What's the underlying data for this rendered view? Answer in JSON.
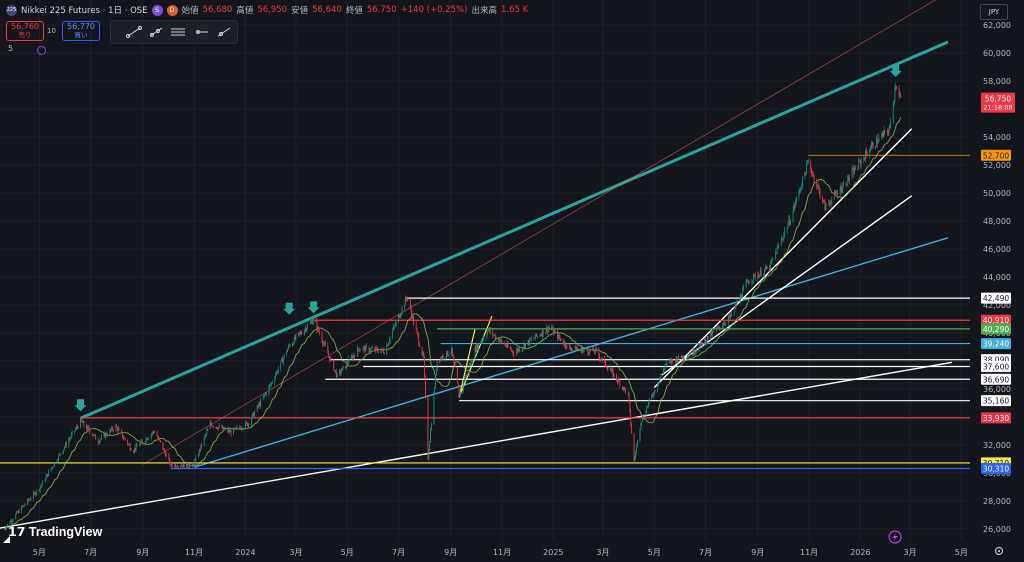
{
  "header": {
    "symbol_icon": "225",
    "title": "Nikkei 225 Futures · 1日 · OSE",
    "ohlc": [
      {
        "label": "始値",
        "value": "56,680"
      },
      {
        "label": "高値",
        "value": "56,950"
      },
      {
        "label": "安値",
        "value": "56,640"
      },
      {
        "label": "終値",
        "value": "56,750"
      }
    ],
    "change": "+140 (+0.25%)",
    "volume_label": "出来高",
    "volume": "1.65 K",
    "badge_s": "S",
    "badge_d": "D",
    "sell_price": "56,760",
    "sell_label": "売り",
    "buy_price": "56,770",
    "buy_label": "買い",
    "spread": "10",
    "indicator_count": "5",
    "currency": "JPY"
  },
  "icons": [
    "trend-line-icon",
    "ray-icon",
    "parallel-channel-icon",
    "horizontal-ray-icon",
    "extended-line-icon",
    "gear-icon",
    "lightning-icon"
  ],
  "branding": "TradingView",
  "colors": {
    "up": "#089981",
    "down": "#f23645",
    "background": "#14161d",
    "teal_line": "#26a69a",
    "blue_line": "#3fb0d8"
  },
  "chart_data": {
    "type": "candlestick",
    "y_ticks": [
      "26,000",
      "28,000",
      "30,000",
      "32,000",
      "34,000",
      "36,000",
      "38,000",
      "40,000",
      "42,000",
      "44,000",
      "46,000",
      "48,000",
      "50,000",
      "52,000",
      "54,000",
      "56,000",
      "58,000",
      "60,000",
      "62,000"
    ],
    "ylim": [
      25200,
      63800
    ],
    "x_ticks": [
      {
        "label": "5月",
        "date": "2023-05-01"
      },
      {
        "label": "7月",
        "date": "2023-07-01"
      },
      {
        "label": "9月",
        "date": "2023-09-01"
      },
      {
        "label": "11月",
        "date": "2023-11-01"
      },
      {
        "label": "2024",
        "date": "2024-01-01"
      },
      {
        "label": "3月",
        "date": "2024-03-01"
      },
      {
        "label": "5月",
        "date": "2024-05-01"
      },
      {
        "label": "7月",
        "date": "2024-07-01"
      },
      {
        "label": "9月",
        "date": "2024-09-01"
      },
      {
        "label": "11月",
        "date": "2024-11-01"
      },
      {
        "label": "2025",
        "date": "2025-01-01"
      },
      {
        "label": "3月",
        "date": "2025-03-01"
      },
      {
        "label": "5月",
        "date": "2025-05-01"
      },
      {
        "label": "7月",
        "date": "2025-07-01"
      },
      {
        "label": "9月",
        "date": "2025-09-01"
      },
      {
        "label": "11月",
        "date": "2025-11-01"
      },
      {
        "label": "2026",
        "date": "2026-01-01"
      },
      {
        "label": "3月",
        "date": "2026-03-01"
      },
      {
        "label": "5月",
        "date": "2026-05-01"
      }
    ],
    "price_path": [
      [
        "2023-03-20",
        26000
      ],
      [
        "2023-04-10",
        27500
      ],
      [
        "2023-05-01",
        28900
      ],
      [
        "2023-05-20",
        30800
      ],
      [
        "2023-06-19",
        33700
      ],
      [
        "2023-07-10",
        32300
      ],
      [
        "2023-07-31",
        33300
      ],
      [
        "2023-08-20",
        31600
      ],
      [
        "2023-09-15",
        33000
      ],
      [
        "2023-10-04",
        30600
      ],
      [
        "2023-10-31",
        30500
      ],
      [
        "2023-11-20",
        33500
      ],
      [
        "2023-12-15",
        32900
      ],
      [
        "2024-01-05",
        33600
      ],
      [
        "2024-01-31",
        36300
      ],
      [
        "2024-02-22",
        39100
      ],
      [
        "2024-03-22",
        41000
      ],
      [
        "2024-04-19",
        36900
      ],
      [
        "2024-05-15",
        38900
      ],
      [
        "2024-06-14",
        38700
      ],
      [
        "2024-07-11",
        42600
      ],
      [
        "2024-07-31",
        38100
      ],
      [
        "2024-08-05",
        31100
      ],
      [
        "2024-08-16",
        38100
      ],
      [
        "2024-09-02",
        38700
      ],
      [
        "2024-09-11",
        35600
      ],
      [
        "2024-09-30",
        38800
      ],
      [
        "2024-10-15",
        40200
      ],
      [
        "2024-11-15",
        38600
      ],
      [
        "2024-12-27",
        40400
      ],
      [
        "2025-01-20",
        38900
      ],
      [
        "2025-02-20",
        38700
      ],
      [
        "2025-03-31",
        35600
      ],
      [
        "2025-04-07",
        30800
      ],
      [
        "2025-04-15",
        33700
      ],
      [
        "2025-05-15",
        37800
      ],
      [
        "2025-06-15",
        38600
      ],
      [
        "2025-07-10",
        40000
      ],
      [
        "2025-07-31",
        41200
      ],
      [
        "2025-08-20",
        43700
      ],
      [
        "2025-09-15",
        44700
      ],
      [
        "2025-10-10",
        48200
      ],
      [
        "2025-10-31",
        52200
      ],
      [
        "2025-11-20",
        49000
      ],
      [
        "2025-12-15",
        50800
      ],
      [
        "2026-01-15",
        53400
      ],
      [
        "2026-02-05",
        54600
      ],
      [
        "2026-02-12",
        57900
      ],
      [
        "2026-02-18",
        56750
      ]
    ],
    "horizontal_levels": [
      {
        "price": 42490,
        "label": "42,490",
        "color": "#ffffff",
        "start": "2024-07-11"
      },
      {
        "price": 40910,
        "label": "40,910",
        "color": "#f23645",
        "start": "2024-03-22"
      },
      {
        "price": 40290,
        "label": "40,290",
        "color": "#4caf50",
        "start": "2024-08-16"
      },
      {
        "price": 39240,
        "label": "39,240",
        "color": "#3fb0d8",
        "start": "2024-08-20"
      },
      {
        "price": 38090,
        "label": "38,090",
        "color": "#ffffff",
        "start": "2024-04-10"
      },
      {
        "price": 37600,
        "label": "37,600",
        "color": "#ffffff",
        "start": "2024-05-20"
      },
      {
        "price": 36690,
        "label": "36,690",
        "color": "#ffffff",
        "start": "2024-04-05"
      },
      {
        "price": 35160,
        "label": "35,160",
        "color": "#ffffff",
        "start": "2024-09-11"
      },
      {
        "price": 33930,
        "label": "33,930",
        "color": "#f23645",
        "start": "2023-06-19"
      },
      {
        "price": 30710,
        "label": "30,710",
        "color": "#ffeb3b",
        "start": "2023-03-01"
      },
      {
        "price": 30310,
        "label": "30,310",
        "color": "#2962ff",
        "start": "2023-10-04"
      },
      {
        "price": 52700,
        "label": "52,700",
        "color": "#ff9800",
        "start": "2025-10-31"
      }
    ],
    "trend_lines": [
      {
        "color": "#26a69a",
        "from": [
          "2023-06-19",
          33900
        ],
        "to": [
          "2026-04-15",
          60800
        ]
      },
      {
        "color": "#ff6b6b",
        "from": [
          "2023-09-01",
          30600
        ],
        "to": [
          "2026-04-20",
          64500
        ]
      },
      {
        "color": "#3fb0d8",
        "from": [
          "2023-11-01",
          30400
        ],
        "to": [
          "2026-04-15",
          46800
        ]
      },
      {
        "color": "#ffffff",
        "from": [
          "2023-03-10",
          26000
        ],
        "to": [
          "2026-04-20",
          37900
        ]
      },
      {
        "color": "#ffffff",
        "from": [
          "2025-05-01",
          36100
        ],
        "to": [
          "2026-03-03",
          54600
        ]
      },
      {
        "color": "#ffffff",
        "from": [
          "2025-05-10",
          37000
        ],
        "to": [
          "2026-03-03",
          49800
        ]
      },
      {
        "color": "#ffeb3b",
        "from": [
          "2024-09-11",
          35400
        ],
        "to": [
          "2024-10-20",
          41200
        ]
      },
      {
        "color": "#ffeb3b",
        "from": [
          "2024-09-11",
          35400
        ],
        "to": [
          "2024-09-30",
          40300
        ]
      }
    ],
    "markers": [
      {
        "date": "2023-06-19",
        "price": 34400,
        "color": "#26a69a"
      },
      {
        "date": "2024-02-22",
        "price": 41300,
        "color": "#26a69a"
      },
      {
        "date": "2024-03-22",
        "price": 41400,
        "color": "#26a69a"
      },
      {
        "date": "2026-02-12",
        "price": 58300,
        "color": "#26a69a"
      }
    ],
    "last_price": {
      "value": "56,750",
      "countdown": "21:18:08",
      "color": "#f23645"
    }
  }
}
